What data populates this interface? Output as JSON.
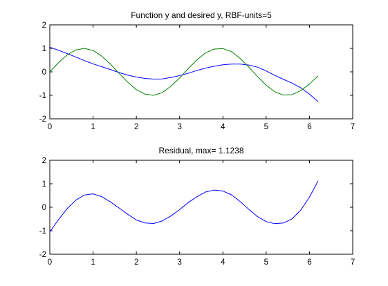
{
  "chart_data": [
    {
      "type": "line",
      "title": "Function y and desired y, RBF-units=5",
      "xlabel": "",
      "ylabel": "",
      "xlim": [
        0,
        7
      ],
      "ylim": [
        -2,
        2
      ],
      "xticks": [
        "0",
        "1",
        "2",
        "3",
        "4",
        "5",
        "6",
        "7"
      ],
      "yticks": [
        "-2",
        "-1",
        "0",
        "1",
        "2"
      ],
      "grid": false,
      "x": [
        0,
        0.2,
        0.4,
        0.6,
        0.8,
        1.0,
        1.2,
        1.4,
        1.6,
        1.8,
        2.0,
        2.2,
        2.4,
        2.6,
        2.8,
        3.0,
        3.2,
        3.4,
        3.6,
        3.8,
        4.0,
        4.2,
        4.4,
        4.6,
        4.8,
        5.0,
        5.2,
        5.4,
        5.6,
        5.8,
        6.0,
        6.2
      ],
      "series": [
        {
          "color": "#0000ff",
          "values": [
            1.05,
            0.92,
            0.78,
            0.63,
            0.48,
            0.34,
            0.22,
            0.1,
            -0.03,
            -0.14,
            -0.22,
            -0.28,
            -0.31,
            -0.3,
            -0.24,
            -0.16,
            -0.06,
            0.06,
            0.16,
            0.24,
            0.3,
            0.33,
            0.33,
            0.29,
            0.2,
            0.04,
            -0.15,
            -0.32,
            -0.48,
            -0.68,
            -0.95,
            -1.27
          ]
        },
        {
          "color": "#008000",
          "values": [
            0.0,
            0.39,
            0.72,
            0.93,
            1.0,
            0.91,
            0.67,
            0.33,
            -0.06,
            -0.44,
            -0.76,
            -0.95,
            -1.0,
            -0.88,
            -0.61,
            -0.26,
            0.14,
            0.51,
            0.81,
            0.97,
            0.99,
            0.86,
            0.57,
            0.2,
            -0.2,
            -0.57,
            -0.85,
            -0.99,
            -0.97,
            -0.8,
            -0.52,
            -0.17
          ]
        }
      ]
    },
    {
      "type": "line",
      "title": "Residual, max= 1.1238",
      "xlabel": "",
      "ylabel": "",
      "xlim": [
        0,
        7
      ],
      "ylim": [
        -2,
        2
      ],
      "xticks": [
        "0",
        "1",
        "2",
        "3",
        "4",
        "5",
        "6",
        "7"
      ],
      "yticks": [
        "-2",
        "-1",
        "0",
        "1",
        "2"
      ],
      "grid": false,
      "x": [
        0,
        0.2,
        0.4,
        0.6,
        0.8,
        1.0,
        1.2,
        1.4,
        1.6,
        1.8,
        2.0,
        2.2,
        2.4,
        2.6,
        2.8,
        3.0,
        3.2,
        3.4,
        3.6,
        3.8,
        4.0,
        4.2,
        4.4,
        4.6,
        4.8,
        5.0,
        5.2,
        5.4,
        5.6,
        5.8,
        6.0,
        6.2
      ],
      "series": [
        {
          "color": "#0000ff",
          "values": [
            -1.05,
            -0.53,
            -0.06,
            0.3,
            0.52,
            0.57,
            0.45,
            0.23,
            -0.03,
            -0.3,
            -0.54,
            -0.67,
            -0.69,
            -0.58,
            -0.37,
            -0.1,
            0.2,
            0.45,
            0.65,
            0.73,
            0.69,
            0.53,
            0.24,
            -0.09,
            -0.4,
            -0.61,
            -0.7,
            -0.67,
            -0.49,
            -0.12,
            0.43,
            1.12
          ]
        }
      ]
    }
  ]
}
